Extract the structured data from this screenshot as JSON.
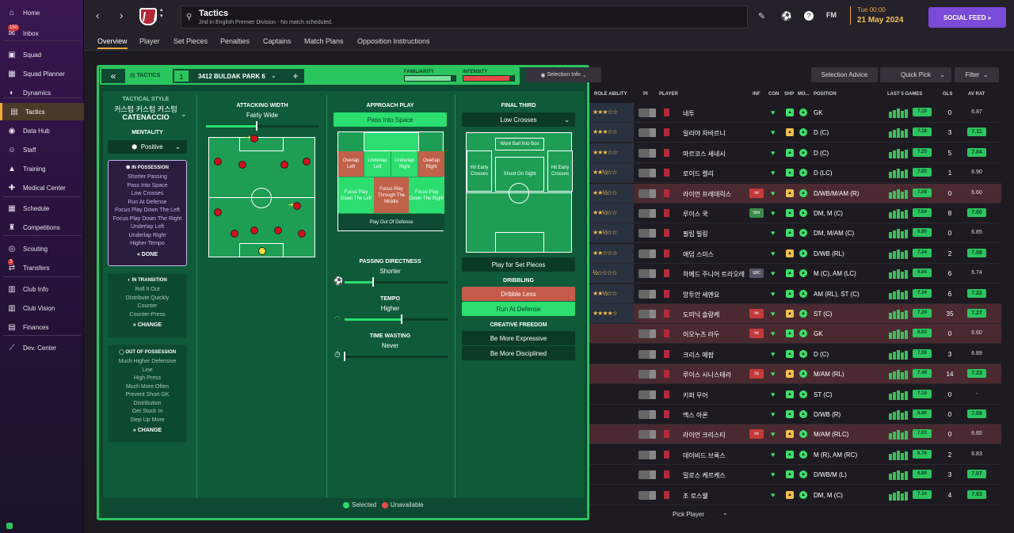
{
  "sidebar": {
    "items": [
      {
        "label": "Home",
        "icon": "home-icon",
        "glyph": "⌂",
        "badge": ""
      },
      {
        "label": "Inbox",
        "icon": "inbox-icon",
        "glyph": "✉",
        "badge": "150"
      },
      {
        "label": "Squad",
        "icon": "shirt-icon",
        "glyph": "▣",
        "badge": ""
      },
      {
        "label": "Squad Planner",
        "icon": "planner-icon",
        "glyph": "▦",
        "badge": ""
      },
      {
        "label": "Dynamics",
        "icon": "dynamics-icon",
        "glyph": "◐",
        "badge": ""
      },
      {
        "label": "Tactics",
        "icon": "tactics-icon",
        "glyph": "▤",
        "badge": ""
      },
      {
        "label": "Data Hub",
        "icon": "data-hub-icon",
        "glyph": "◉",
        "badge": ""
      },
      {
        "label": "Staff",
        "icon": "staff-icon",
        "glyph": "☺",
        "badge": ""
      },
      {
        "label": "Training",
        "icon": "training-icon",
        "glyph": "▲",
        "badge": ""
      },
      {
        "label": "Medical Center",
        "icon": "medical-icon",
        "glyph": "✚",
        "badge": ""
      },
      {
        "label": "Schedule",
        "icon": "schedule-icon",
        "glyph": "▦",
        "badge": ""
      },
      {
        "label": "Competitions",
        "icon": "trophy-icon",
        "glyph": "♜",
        "badge": ""
      },
      {
        "label": "Scouting",
        "icon": "scouting-icon",
        "glyph": "◎",
        "badge": ""
      },
      {
        "label": "Transfers",
        "icon": "transfers-icon",
        "glyph": "⇄",
        "badge": "3"
      },
      {
        "label": "Club Info",
        "icon": "club-info-icon",
        "glyph": "▥",
        "badge": ""
      },
      {
        "label": "Club Vision",
        "icon": "club-vision-icon",
        "glyph": "▥",
        "badge": ""
      },
      {
        "label": "Finances",
        "icon": "finances-icon",
        "glyph": "▤",
        "badge": ""
      },
      {
        "label": "Dev. Center",
        "icon": "dev-center-icon",
        "glyph": "⟋",
        "badge": ""
      }
    ]
  },
  "header": {
    "title": "Tactics",
    "subtitle": "2nd in English Premier Division - No match scheduled.",
    "fm_label": "FM",
    "date_line1": "Tue 00:00",
    "date_line2": "21 May 2024",
    "social_label": "SOCIAL FEED"
  },
  "tabs": [
    "Overview",
    "Player",
    "Set Pieces",
    "Penalties",
    "Captains",
    "Match Plans",
    "Opposition Instructions"
  ],
  "tactic_bar": {
    "label": "TACTICS",
    "slot": "1",
    "name": "3412 BULDAK PARK 6",
    "familiarity_label": "FAMILIARITY",
    "intensity_label": "INTENSITY",
    "familiarity": 0.9,
    "intensity": 0.9,
    "selection_info": "Selection Info"
  },
  "style": {
    "title": "TACTICAL STYLE",
    "name": "커스텀 커스텀 커스텀",
    "name2": "CATENACCIO",
    "mentality_label": "MENTALITY",
    "mentality": "Positive"
  },
  "in_possession": {
    "title": "IN POSSESSION",
    "items": [
      "Shorter Passing",
      "Pass Into Space",
      "Low Crosses",
      "Run At Defense",
      "Focus Play Down The Left",
      "Focus Play Down The Right",
      "Underlap Left",
      "Underlap Right",
      "Higher Tempo"
    ],
    "button": "DONE"
  },
  "in_transition": {
    "title": "IN TRANSITION",
    "items": [
      "Roll It Out",
      "Distribute Quickly",
      "Counter",
      "Counter-Press"
    ],
    "button": "CHANGE"
  },
  "out_of_possession": {
    "title": "OUT OF POSSESSION",
    "items": [
      "Much Higher Defensive",
      "Line",
      "High Press",
      "Much More Often",
      "Prevent Short GK",
      "Distribution",
      "Get Stuck In",
      "Step Up More"
    ],
    "button": "CHANGE"
  },
  "attacking_width": {
    "title": "ATTACKING WIDTH",
    "value": "Fairly Wide",
    "level": 0.45
  },
  "approach": {
    "title": "APPROACH PLAY",
    "selected": "Pass Into Space",
    "zones": [
      "Overlap Left",
      "Underlap Left",
      "Underlap Right",
      "Overlap Right",
      "Focus Play Down The Left",
      "Focus Play Through The Middle",
      "Focus Play Down The Right",
      "Play Out Of Defense"
    ]
  },
  "passing": {
    "title": "PASSING DIRECTNESS",
    "value": "Shorter",
    "level": 0.28
  },
  "tempo": {
    "title": "TEMPO",
    "value": "Higher",
    "level": 0.55
  },
  "time_wasting": {
    "title": "TIME WASTING",
    "value": "Never",
    "level": 0.0
  },
  "final_third": {
    "title": "FINAL THIRD",
    "selected": "Low Crosses",
    "zones": [
      "Work Ball Into Box",
      "Hit Early Crosses",
      "Shoot On Sight",
      "Hit Early Crosses"
    ],
    "set_pieces": "Play for Set Pieces"
  },
  "dribbling": {
    "title": "DRIBBLING",
    "opt1": "Dribble Less",
    "opt2": "Run At Defense"
  },
  "creative": {
    "title": "CREATIVE FREEDOM",
    "opt1": "Be More Expressive",
    "opt2": "Be More Disciplined"
  },
  "legend": {
    "selected": "Selected",
    "unavailable": "Unavailable"
  },
  "squad_controls": {
    "advice": "Selection Advice",
    "quick_pick": "Quick Pick",
    "filter": "Filter"
  },
  "squad_headers": {
    "role": "ROLE ABILITY",
    "pi": "PI",
    "player": "PLAYER",
    "inf": "INF",
    "con": "CON",
    "shp": "SHP",
    "mo": "MO...",
    "position": "POSITION",
    "last5": "LAST 5 GAMES",
    "gls": "GLS",
    "avrat": "AV RAT"
  },
  "players": [
    {
      "stars": "★★★☆☆",
      "name": "네투",
      "inf": "",
      "pos": "GK",
      "rating": "7.10",
      "gls": "0",
      "av": "6.87",
      "red": false,
      "avg": false
    },
    {
      "stars": "★★★☆☆",
      "name": "일리야 자바르니",
      "inf": "",
      "pos": "D (C)",
      "rating": "7.18",
      "gls": "3",
      "av": "7.11",
      "red": false,
      "avg": true
    },
    {
      "stars": "★★★☆☆",
      "name": "마르코스 세네시",
      "inf": "",
      "pos": "D (C)",
      "rating": "7.25",
      "gls": "5",
      "av": "7.04",
      "red": false,
      "avg": true
    },
    {
      "stars": "★★½☆☆",
      "name": "로이드 켈리",
      "inf": "",
      "pos": "D (LC)",
      "rating": "7.00",
      "gls": "1",
      "av": "6.90",
      "red": false,
      "avg": false
    },
    {
      "stars": "★★½☆☆",
      "name": "라이언 프레데릭스",
      "inf": "Int",
      "pos": "D/WB/M/AM (R)",
      "rating": "7.08",
      "gls": "0",
      "av": "6.60",
      "red": true,
      "avg": false
    },
    {
      "stars": "★★½☆☆",
      "name": "루이스 쿡",
      "inf": "Wnt",
      "pos": "DM, M (C)",
      "rating": "7.04",
      "gls": "8",
      "av": "7.00",
      "red": false,
      "avg": true
    },
    {
      "stars": "★★½☆☆",
      "name": "필립 빌링",
      "inf": "",
      "pos": "DM, M/AM (C)",
      "rating": "6.90",
      "gls": "0",
      "av": "6.85",
      "red": false,
      "avg": false
    },
    {
      "stars": "★★☆☆☆",
      "name": "애덤 스미스",
      "inf": "",
      "pos": "D/WB (RL)",
      "rating": "7.24",
      "gls": "2",
      "av": "7.08",
      "red": false,
      "avg": true
    },
    {
      "stars": "½☆☆☆☆",
      "name": "하메드 주니어 트라오레",
      "inf": "SBC",
      "pos": "M (C), AM (LC)",
      "rating": "6.64",
      "gls": "6",
      "av": "6.74",
      "red": false,
      "avg": false
    },
    {
      "stars": "★★½☆☆",
      "name": "앙투안 세멘요",
      "inf": "",
      "pos": "AM (RL), ST (C)",
      "rating": "7.24",
      "gls": "6",
      "av": "7.22",
      "red": false,
      "avg": true
    },
    {
      "stars": "★★★★☆",
      "name": "도미닉 솔랑케",
      "inf": "Int",
      "pos": "ST (C)",
      "rating": "7.24",
      "gls": "35",
      "av": "7.27",
      "red": true,
      "avg": true
    },
    {
      "stars": "",
      "name": "이오누츠 라두",
      "inf": "Int",
      "pos": "GK",
      "rating": "6.63",
      "gls": "0",
      "av": "6.60",
      "red": true,
      "avg": false
    },
    {
      "stars": "",
      "name": "크리스 메팜",
      "inf": "",
      "pos": "D (C)",
      "rating": "7.06",
      "gls": "3",
      "av": "6.89",
      "red": false,
      "avg": false
    },
    {
      "stars": "",
      "name": "루이스 시니스테라",
      "inf": "Inj",
      "pos": "M/AM (RL)",
      "rating": "7.48",
      "gls": "14",
      "av": "7.23",
      "red": true,
      "avg": true
    },
    {
      "stars": "",
      "name": "키퍼 무어",
      "inf": "",
      "pos": "ST (C)",
      "rating": "7.10",
      "gls": "0",
      "av": "-",
      "red": false,
      "avg": false
    },
    {
      "stars": "",
      "name": "맥스 아론",
      "inf": "",
      "pos": "D/WB (R)",
      "rating": "6.86",
      "gls": "0",
      "av": "7.08",
      "red": false,
      "avg": true
    },
    {
      "stars": "",
      "name": "라이언 크리스티",
      "inf": "Int",
      "pos": "M/AM (RLC)",
      "rating": "7.03",
      "gls": "0",
      "av": "6.65",
      "red": true,
      "avg": false
    },
    {
      "stars": "",
      "name": "데이비드 브룩스",
      "inf": "",
      "pos": "M (R), AM (RC)",
      "rating": "6.76",
      "gls": "2",
      "av": "6.83",
      "red": false,
      "avg": false
    },
    {
      "stars": "",
      "name": "밀로스 케르케스",
      "inf": "",
      "pos": "D/WB/M (L)",
      "rating": "6.80",
      "gls": "3",
      "av": "7.07",
      "red": false,
      "avg": true
    },
    {
      "stars": "",
      "name": "조 로스웰",
      "inf": "",
      "pos": "DM, M (C)",
      "rating": "7.34",
      "gls": "4",
      "av": "7.83",
      "red": false,
      "avg": true
    }
  ],
  "pick_player": "Pick Player"
}
